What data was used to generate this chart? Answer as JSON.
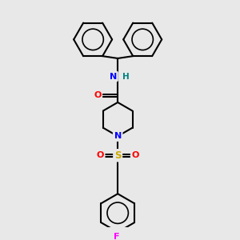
{
  "background_color": "#e8e8e8",
  "title": "",
  "line_color": "#000000",
  "bond_width": 1.5,
  "atom_colors": {
    "N": "#0000ff",
    "O": "#ff0000",
    "S": "#ccaa00",
    "F": "#ff00ff",
    "H": "#008080",
    "C": "#000000"
  }
}
